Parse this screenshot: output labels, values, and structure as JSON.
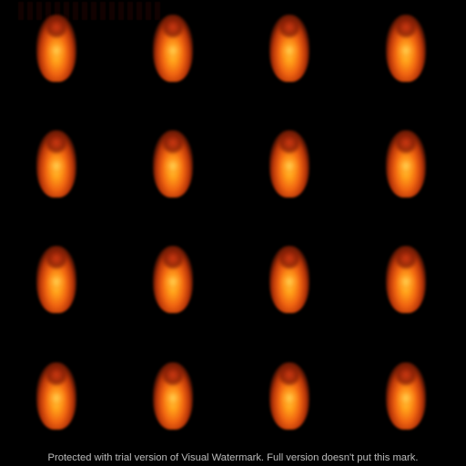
{
  "scene": {
    "description_kind": "rows_of_glowing_orange_blobs",
    "background_color": "#000000",
    "blob_colors": [
      "#ffcc33",
      "#ff9a18",
      "#f06410",
      "#b73408"
    ],
    "grid": {
      "rows": 4,
      "columns": 4
    }
  },
  "watermark": {
    "text": "Protected with trial version of Visual Watermark. Full version doesn't put this mark."
  }
}
